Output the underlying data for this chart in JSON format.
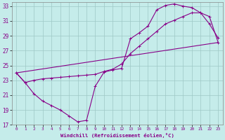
{
  "xlabel": "Windchill (Refroidissement éolien,°C)",
  "background_color": "#c5ecea",
  "grid_color": "#9ec8c5",
  "line_color": "#880088",
  "xlim": [
    -0.5,
    23.5
  ],
  "ylim": [
    17,
    33.5
  ],
  "xtick_labels": [
    "0",
    "1",
    "2",
    "3",
    "4",
    "5",
    "6",
    "7",
    "8",
    "9",
    "10",
    "11",
    "12",
    "13",
    "14",
    "15",
    "16",
    "17",
    "18",
    "19",
    "20",
    "21",
    "22",
    "23"
  ],
  "xtick_vals": [
    0,
    1,
    2,
    3,
    4,
    5,
    6,
    7,
    8,
    9,
    10,
    11,
    12,
    13,
    14,
    15,
    16,
    17,
    18,
    19,
    20,
    21,
    22,
    23
  ],
  "ytick_vals": [
    17,
    19,
    21,
    23,
    25,
    27,
    29,
    31,
    33
  ],
  "line1_x": [
    0,
    1,
    2,
    3,
    4,
    5,
    6,
    7,
    8,
    9,
    10,
    11,
    12,
    13,
    14,
    15,
    16,
    17,
    18,
    19,
    20,
    21,
    22,
    23
  ],
  "line1_y": [
    24.0,
    22.7,
    21.2,
    20.2,
    19.6,
    19.0,
    18.2,
    17.4,
    17.6,
    22.2,
    24.1,
    24.4,
    24.6,
    28.6,
    29.4,
    30.3,
    32.5,
    33.1,
    33.3,
    33.0,
    32.8,
    32.1,
    30.6,
    28.7
  ],
  "line2_x": [
    0,
    1,
    2,
    3,
    4,
    5,
    6,
    7,
    8,
    9,
    10,
    11,
    12,
    13,
    14,
    15,
    16,
    17,
    18,
    19,
    20,
    21,
    22,
    23
  ],
  "line2_y": [
    24.0,
    22.7,
    23.0,
    23.2,
    23.3,
    23.4,
    23.5,
    23.6,
    23.7,
    23.8,
    24.2,
    24.5,
    25.2,
    26.6,
    27.6,
    28.6,
    29.6,
    30.6,
    31.1,
    31.6,
    32.1,
    32.1,
    31.6,
    28.1
  ],
  "line3_x": [
    0,
    23
  ],
  "line3_y": [
    24.0,
    28.1
  ]
}
